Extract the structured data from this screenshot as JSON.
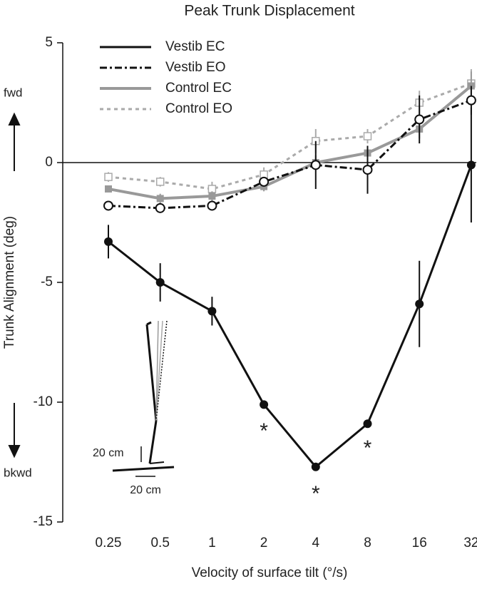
{
  "chart_data": {
    "type": "line",
    "title": "Peak Trunk Displacement",
    "x_label": "Velocity of surface tilt (°/s)",
    "y_label": "Trunk Alignment (deg)",
    "categories": [
      "0.25",
      "0.5",
      "1",
      "2",
      "4",
      "8",
      "16",
      "32"
    ],
    "ylim": [
      -15,
      5
    ],
    "yticks": [
      5,
      0,
      -5,
      -10,
      -15
    ],
    "series": [
      {
        "name": "Vestib  EC",
        "color": "#111111",
        "dash": "solid",
        "marker": "filled",
        "values": [
          -3.3,
          -5.0,
          -6.2,
          -10.1,
          -12.7,
          -10.9,
          -5.9,
          -0.1
        ],
        "errors": [
          0.7,
          0.8,
          0.6,
          0,
          0,
          0,
          1.8,
          2.4
        ]
      },
      {
        "name": "Vestib  EO",
        "color": "#111111",
        "dash": "dashdot",
        "marker": "open-circle",
        "values": [
          -1.8,
          -1.9,
          -1.8,
          -0.8,
          -0.1,
          -0.3,
          1.8,
          2.6
        ],
        "errors": [
          0,
          0,
          0,
          0,
          1.0,
          1.0,
          1.0,
          0.6
        ]
      },
      {
        "name": "Control EC",
        "color": "#999999",
        "dash": "solid",
        "marker": "filled-square",
        "values": [
          -1.1,
          -1.5,
          -1.4,
          -1.0,
          0.0,
          0.4,
          1.4,
          3.2
        ],
        "errors": [
          0.1,
          0.2,
          0.2,
          0.2,
          0.3,
          0.3,
          0.4,
          0.6
        ]
      },
      {
        "name": "Control EO",
        "color": "#aaaaaa",
        "dash": "dotted",
        "marker": "open-square",
        "values": [
          -0.6,
          -0.8,
          -1.1,
          -0.5,
          0.9,
          1.1,
          2.5,
          3.3
        ],
        "errors": [
          0.2,
          0.2,
          0.3,
          0.3,
          0.5,
          0.3,
          0.5,
          0.6
        ]
      }
    ],
    "zero_line": 0,
    "direction_labels": [
      "fwd",
      "bkwd"
    ],
    "asterisks": [
      "*",
      "*",
      "*"
    ],
    "scale_labels": [
      "20 cm",
      "20 cm"
    ]
  }
}
